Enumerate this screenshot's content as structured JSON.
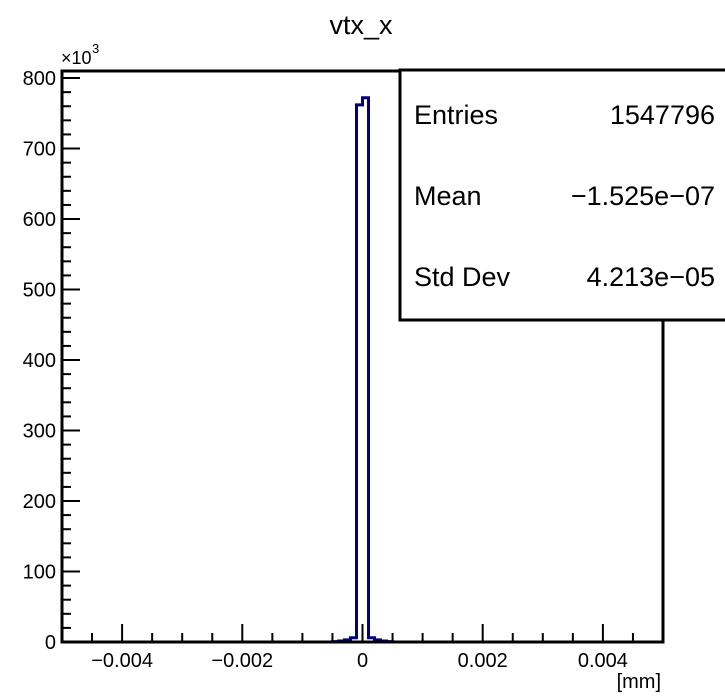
{
  "chart_data": {
    "type": "histogram",
    "title": "vtx_x",
    "xlabel": "[mm]",
    "ylabel": "",
    "xlim": [
      -0.005,
      0.005
    ],
    "ylim": [
      0,
      810000
    ],
    "y_multiplier_label": "×10",
    "y_multiplier_exponent": "3",
    "x_ticks": [
      -0.004,
      -0.002,
      0,
      0.002,
      0.004
    ],
    "x_tick_labels": [
      "−0.004",
      "−0.002",
      "0",
      "0.002",
      "0.004"
    ],
    "y_ticks": [
      0,
      100000,
      200000,
      300000,
      400000,
      500000,
      600000,
      700000,
      800000
    ],
    "y_tick_labels": [
      "0",
      "100",
      "200",
      "300",
      "400",
      "500",
      "600",
      "700",
      "800"
    ],
    "bin_width": 0.0001,
    "bins": [
      {
        "x0": -0.0005,
        "x1": -0.0004,
        "value": 600
      },
      {
        "x0": -0.0004,
        "x1": -0.0003,
        "value": 1500
      },
      {
        "x0": -0.0003,
        "x1": -0.0002,
        "value": 3000
      },
      {
        "x0": -0.0002,
        "x1": -0.0001,
        "value": 6000
      },
      {
        "x0": -0.0001,
        "x1": 0.0,
        "value": 762000
      },
      {
        "x0": 0.0,
        "x1": 0.0001,
        "value": 772000
      },
      {
        "x0": 0.0001,
        "x1": 0.0002,
        "value": 6000
      },
      {
        "x0": 0.0002,
        "x1": 0.0003,
        "value": 3000
      },
      {
        "x0": 0.0003,
        "x1": 0.0004,
        "value": 1500
      },
      {
        "x0": 0.0004,
        "x1": 0.0005,
        "value": 600
      }
    ],
    "line_color": "#000080",
    "stats": {
      "rows": [
        {
          "label": "Entries",
          "value": "1547796"
        },
        {
          "label": "Mean",
          "value": "−1.525e−07"
        },
        {
          "label": "Std Dev",
          "value": "4.213e−05"
        }
      ],
      "position": "top-right"
    }
  }
}
